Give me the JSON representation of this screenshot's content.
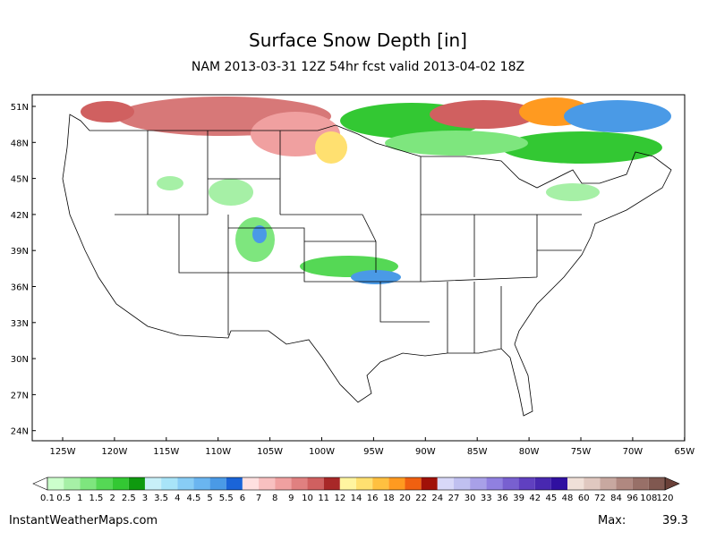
{
  "header": {
    "title": "Surface Snow Depth [in]",
    "subtitle": "NAM 2013-03-31 12Z 54hr fcst valid 2013-04-02 18Z"
  },
  "map": {
    "lat_labels": [
      "51N",
      "48N",
      "45N",
      "42N",
      "39N",
      "36N",
      "33N",
      "30N",
      "27N",
      "24N"
    ],
    "lon_labels": [
      "125W",
      "120W",
      "115W",
      "110W",
      "105W",
      "100W",
      "95W",
      "90W",
      "85W",
      "80W",
      "75W",
      "70W",
      "65W"
    ]
  },
  "colorbar": {
    "labels": [
      0.1,
      0.5,
      1,
      1.5,
      2,
      2.5,
      3,
      3.5,
      4,
      4.5,
      5,
      5.5,
      6,
      7,
      8,
      9,
      10,
      11,
      12,
      14,
      16,
      18,
      20,
      22,
      24,
      27,
      30,
      33,
      36,
      39,
      42,
      45,
      48,
      60,
      72,
      84,
      96,
      108,
      120
    ],
    "colors": [
      "#ccffcc",
      "#a6f0a6",
      "#7ee67e",
      "#55d855",
      "#33c833",
      "#0f9a0f",
      "#c8f0f8",
      "#a8e4f8",
      "#88cdf5",
      "#6ab5f0",
      "#4a9ae6",
      "#1a64d8",
      "#ffe0e0",
      "#f8c0c0",
      "#f0a0a0",
      "#e08080",
      "#d06060",
      "#a82828",
      "#fff5a0",
      "#ffe070",
      "#ffc040",
      "#ff9a20",
      "#f06010",
      "#a01008",
      "#d8d8f8",
      "#c0c0f0",
      "#a8a0e8",
      "#9080e0",
      "#7860d0",
      "#6040c0",
      "#4828b0",
      "#3010a0",
      "#f0e0d8",
      "#e0c8c0",
      "#c8a8a0",
      "#b08880",
      "#987068",
      "#805850"
    ],
    "under_color": "#ffffff",
    "over_color": "#6a4038"
  },
  "footer": {
    "source": "InstantWeatherMaps.com",
    "max_label": "Max:",
    "max_value": 39.3
  }
}
